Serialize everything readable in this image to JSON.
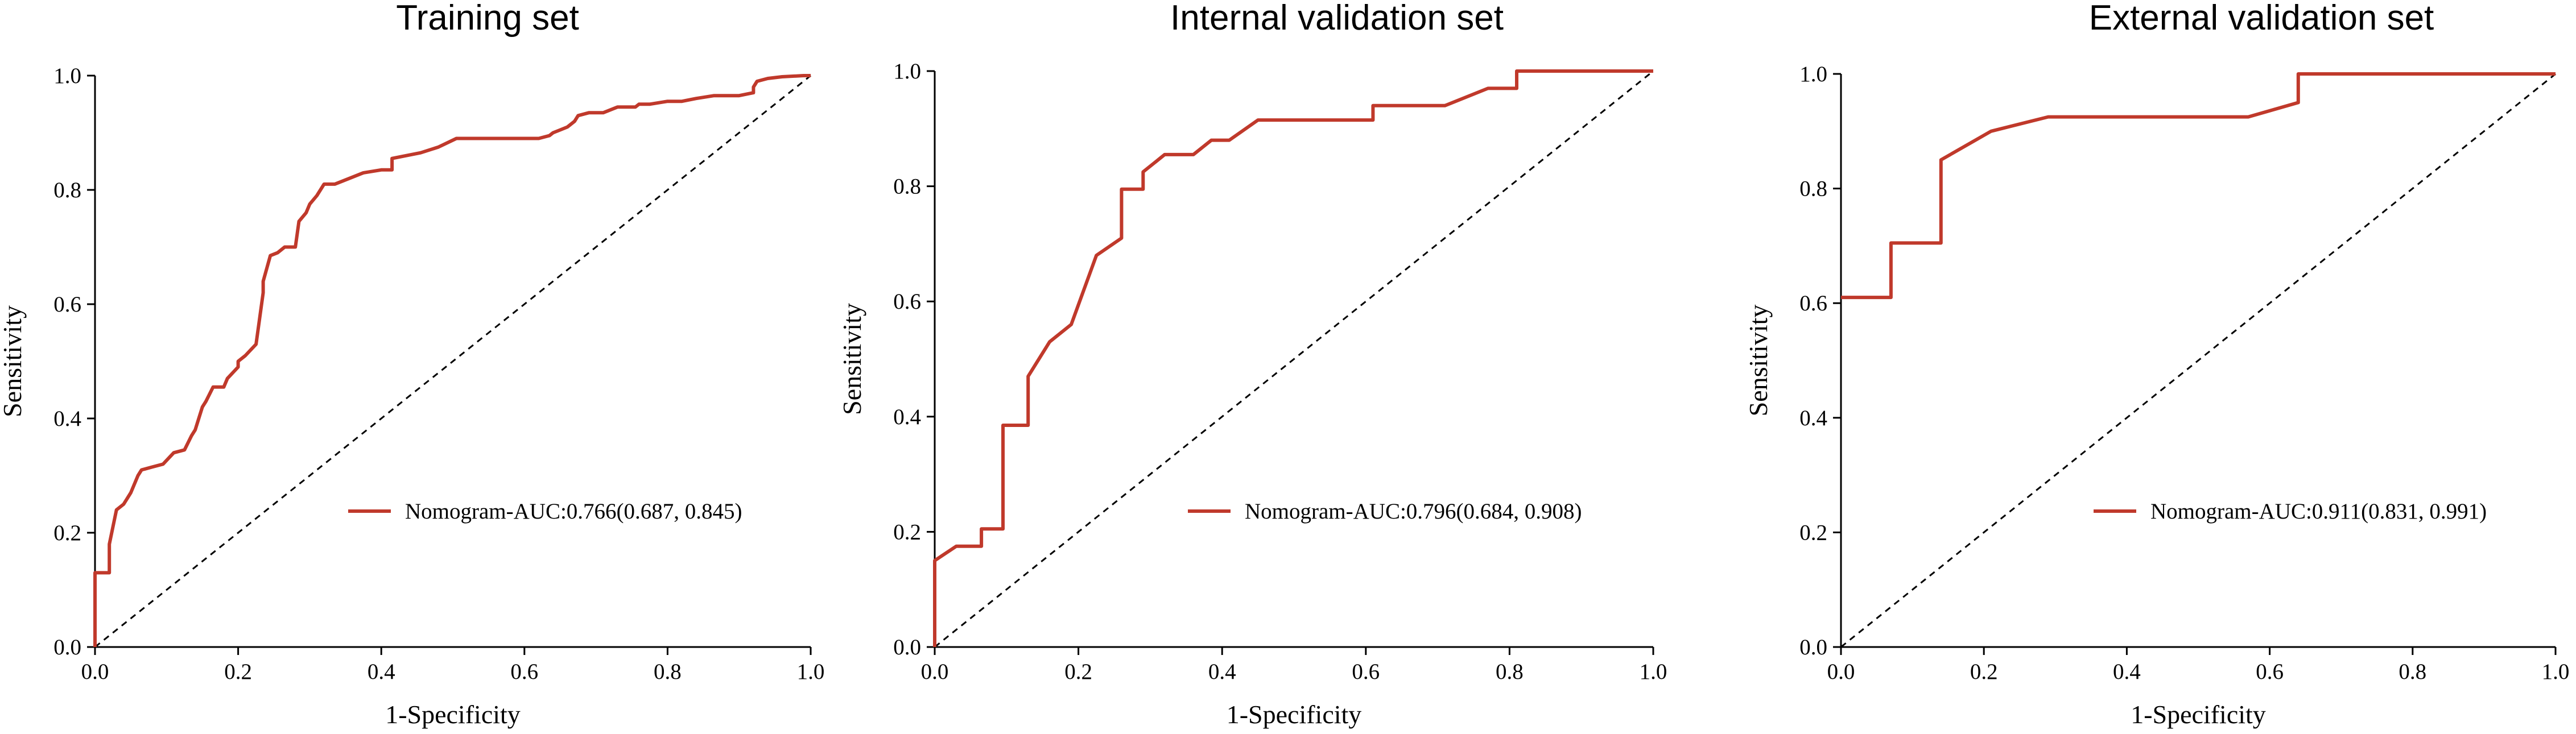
{
  "colors": {
    "curve": "#c0392b",
    "axis": "#000000",
    "reference": "#000000"
  },
  "chart_data": [
    {
      "type": "line",
      "title": "Training set",
      "xlabel": "1-Specificity",
      "ylabel": "Sensitivity",
      "xlim": [
        0,
        1.0
      ],
      "ylim": [
        0,
        1.0
      ],
      "xticks": [
        "0.0",
        "0.2",
        "0.4",
        "0.6",
        "0.8",
        "1.0"
      ],
      "yticks": [
        "0.0",
        "0.2",
        "0.4",
        "0.6",
        "0.8",
        "1.0"
      ],
      "legend": "Nomogram-AUC:0.766(0.687, 0.845)",
      "legend_position": "center-right",
      "reference_line": "diagonal dashed",
      "series": [
        {
          "name": "Nomogram",
          "x": [
            0,
            0,
            0.02,
            0.02,
            0.03,
            0.035,
            0.04,
            0.05,
            0.06,
            0.065,
            0.08,
            0.095,
            0.11,
            0.125,
            0.135,
            0.14,
            0.15,
            0.155,
            0.165,
            0.18,
            0.185,
            0.2,
            0.2,
            0.21,
            0.225,
            0.235,
            0.235,
            0.245,
            0.255,
            0.265,
            0.28,
            0.285,
            0.295,
            0.3,
            0.31,
            0.32,
            0.335,
            0.355,
            0.375,
            0.4,
            0.415,
            0.415,
            0.435,
            0.455,
            0.48,
            0.505,
            0.535,
            0.56,
            0.6,
            0.62,
            0.635,
            0.64,
            0.65,
            0.66,
            0.67,
            0.675,
            0.69,
            0.71,
            0.73,
            0.755,
            0.76,
            0.775,
            0.8,
            0.8,
            0.82,
            0.84,
            0.865,
            0.9,
            0.92,
            0.92,
            0.925,
            0.94,
            0.96,
            0.99,
            1.0
          ],
          "y": [
            0,
            0.13,
            0.13,
            0.18,
            0.24,
            0.245,
            0.25,
            0.27,
            0.3,
            0.31,
            0.315,
            0.32,
            0.34,
            0.345,
            0.37,
            0.38,
            0.42,
            0.43,
            0.455,
            0.455,
            0.47,
            0.49,
            0.5,
            0.51,
            0.53,
            0.62,
            0.64,
            0.685,
            0.69,
            0.7,
            0.7,
            0.745,
            0.76,
            0.775,
            0.79,
            0.81,
            0.81,
            0.82,
            0.83,
            0.835,
            0.835,
            0.855,
            0.86,
            0.865,
            0.875,
            0.89,
            0.89,
            0.89,
            0.89,
            0.89,
            0.895,
            0.9,
            0.905,
            0.91,
            0.92,
            0.93,
            0.935,
            0.935,
            0.945,
            0.945,
            0.95,
            0.95,
            0.955,
            0.955,
            0.955,
            0.96,
            0.965,
            0.965,
            0.97,
            0.98,
            0.99,
            0.995,
            0.998,
            1.0,
            1.0
          ]
        }
      ]
    },
    {
      "type": "line",
      "title": "Internal validation set",
      "xlabel": "1-Specificity",
      "ylabel": "Sensitivity",
      "xlim": [
        0,
        1.0
      ],
      "ylim": [
        0,
        1.0
      ],
      "xticks": [
        "0.0",
        "0.2",
        "0.4",
        "0.6",
        "0.8",
        "1.0"
      ],
      "yticks": [
        "0.0",
        "0.2",
        "0.4",
        "0.6",
        "0.8",
        "1.0"
      ],
      "legend": "Nomogram-AUC:0.796(0.684, 0.908)",
      "legend_position": "center-right",
      "reference_line": "diagonal dashed",
      "series": [
        {
          "name": "Nomogram",
          "x": [
            0,
            0,
            0.03,
            0.065,
            0.065,
            0.095,
            0.095,
            0.13,
            0.13,
            0.16,
            0.19,
            0.225,
            0.26,
            0.26,
            0.29,
            0.29,
            0.32,
            0.36,
            0.385,
            0.41,
            0.45,
            0.61,
            0.61,
            0.71,
            0.77,
            0.81,
            0.81,
            1.0
          ],
          "y": [
            0,
            0.15,
            0.175,
            0.175,
            0.205,
            0.205,
            0.385,
            0.385,
            0.47,
            0.53,
            0.56,
            0.68,
            0.71,
            0.795,
            0.795,
            0.825,
            0.855,
            0.855,
            0.88,
            0.88,
            0.915,
            0.915,
            0.94,
            0.94,
            0.97,
            0.97,
            1.0,
            1.0
          ]
        }
      ]
    },
    {
      "type": "line",
      "title": "External validation set",
      "xlabel": "1-Specificity",
      "ylabel": "Sensitivity",
      "xlim": [
        0,
        1.0
      ],
      "ylim": [
        0,
        1.0
      ],
      "xticks": [
        "0.0",
        "0.2",
        "0.4",
        "0.6",
        "0.8",
        "1.0"
      ],
      "yticks": [
        "0.0",
        "0.2",
        "0.4",
        "0.6",
        "0.8",
        "1.0"
      ],
      "legend": "Nomogram-AUC:0.911(0.831, 0.991)",
      "legend_position": "center-right",
      "reference_line": "diagonal dashed",
      "series": [
        {
          "name": "Nomogram",
          "x": [
            0,
            0.07,
            0.07,
            0.14,
            0.14,
            0.21,
            0.29,
            0.57,
            0.64,
            0.64,
            1.0
          ],
          "y": [
            0.61,
            0.61,
            0.705,
            0.705,
            0.85,
            0.9,
            0.925,
            0.925,
            0.95,
            1.0,
            1.0
          ]
        }
      ]
    }
  ]
}
